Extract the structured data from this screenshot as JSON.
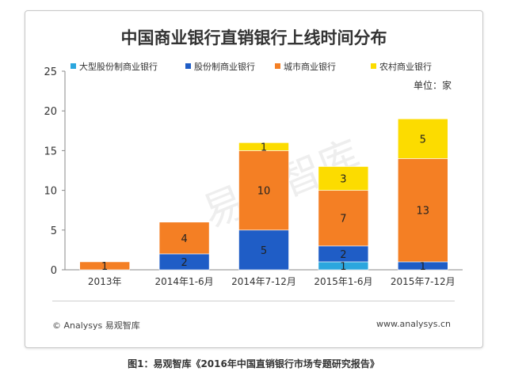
{
  "chart_data": {
    "type": "bar",
    "stacked": true,
    "title": "中国商业银行直销银行上线时间分布",
    "unit_label": "单位：家",
    "categories": [
      "2013年",
      "2014年1-6月",
      "2014年7-12月",
      "2015年1-6月",
      "2015年7-12月"
    ],
    "series": [
      {
        "name": "大型股份制商业银行",
        "color": "#2ba6de",
        "values": [
          0,
          0,
          0,
          1,
          0
        ]
      },
      {
        "name": "股份制商业银行",
        "color": "#1f5dc6",
        "values": [
          0,
          2,
          5,
          2,
          1
        ]
      },
      {
        "name": "城市商业银行",
        "color": "#f47f24",
        "values": [
          1,
          4,
          10,
          7,
          13
        ]
      },
      {
        "name": "农村商业银行",
        "color": "#fcdc00",
        "values": [
          0,
          0,
          1,
          3,
          5
        ]
      }
    ],
    "ylim": [
      0,
      25
    ],
    "yticks": [
      0,
      5,
      10,
      15,
      20,
      25
    ],
    "grid": false,
    "legend_position": "top"
  },
  "watermark": "易观智库",
  "footer": {
    "left": "© Analysys 易观智库",
    "right": "www.analysys.cn"
  },
  "caption": "图1：易观智库《2016年中国直销银行市场专题研究报告》"
}
